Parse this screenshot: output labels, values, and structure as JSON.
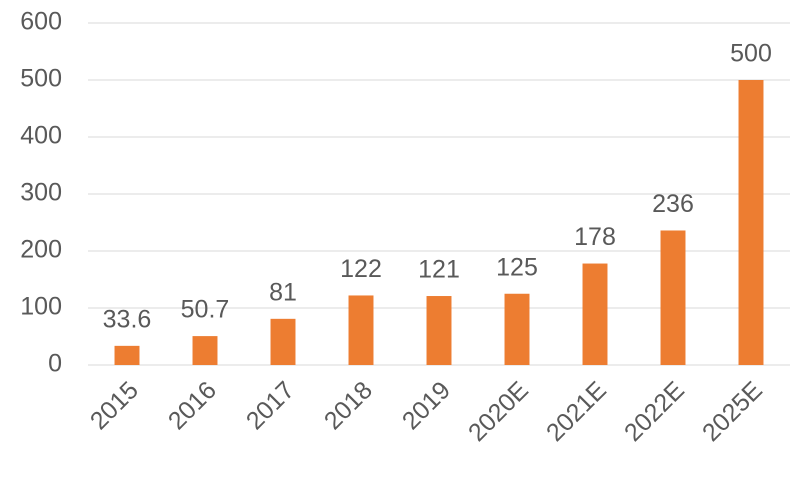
{
  "chart_data": {
    "type": "bar",
    "categories": [
      "2015",
      "2016",
      "2017",
      "2018",
      "2019",
      "2020E",
      "2021E",
      "2022E",
      "2025E"
    ],
    "values": [
      33.6,
      50.7,
      81,
      122,
      121,
      125,
      178,
      236,
      500
    ],
    "color": "#ed7d31",
    "ylim": [
      0,
      600
    ],
    "yticks": [
      0,
      100,
      200,
      300,
      400,
      500,
      600
    ],
    "grid": true,
    "data_labels": true
  }
}
